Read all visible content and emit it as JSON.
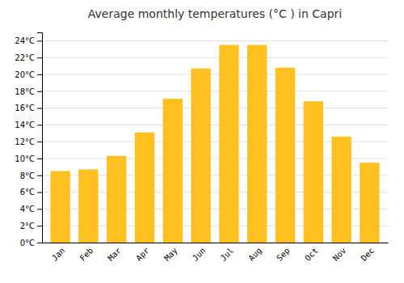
{
  "chart_data": {
    "type": "bar",
    "title": "Average monthly temperatures (°C ) in Capri",
    "categories": [
      "Jan",
      "Feb",
      "Mar",
      "Apr",
      "May",
      "Jun",
      "Jul",
      "Aug",
      "Sep",
      "Oct",
      "Nov",
      "Dec"
    ],
    "values": [
      8.5,
      8.7,
      10.3,
      13.1,
      17.1,
      20.7,
      23.5,
      23.5,
      20.8,
      16.8,
      12.6,
      9.5
    ],
    "color": "#FFC020",
    "ylim": [
      0,
      25
    ],
    "yticks": [
      {
        "value": 0,
        "label": "0°C"
      },
      {
        "value": 2,
        "label": "2°C"
      },
      {
        "value": 4,
        "label": "4°C"
      },
      {
        "value": 6,
        "label": "6°C"
      },
      {
        "value": 8,
        "label": "8°C"
      },
      {
        "value": 10,
        "label": "10°C"
      },
      {
        "value": 12,
        "label": "12°C"
      },
      {
        "value": 14,
        "label": "14°C"
      },
      {
        "value": 16,
        "label": "16°C"
      },
      {
        "value": 18,
        "label": "18°C"
      },
      {
        "value": 20,
        "label": "20°C"
      },
      {
        "value": 22,
        "label": "22°C"
      },
      {
        "value": 24,
        "label": "24°C"
      }
    ],
    "grid": true
  }
}
